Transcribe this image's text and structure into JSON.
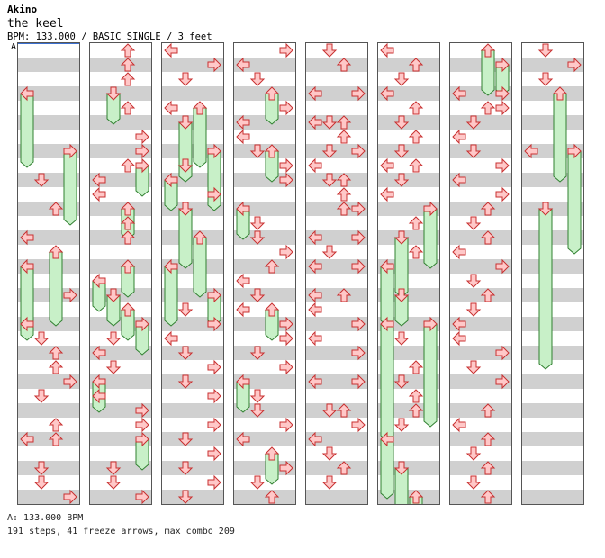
{
  "artist": "Akino",
  "title": "the keel",
  "info": "BPM: 133.000 / BASIC SINGLE / 3 feet",
  "marker": "A",
  "footer": {
    "bpm_line": "A: 133.000 BPM",
    "stats_line": "191 steps, 41 freeze arrows, max combo 209"
  },
  "colors": {
    "stripe": "#d0d0d0",
    "arrow_fill": "#ffc8c8",
    "arrow_stroke": "#c83030",
    "freeze_fill": "#c8f0c8",
    "freeze_stroke": "#308030"
  },
  "columns_count": 8,
  "notes": [
    [
      [
        0,
        3.5,
        "freeze",
        2.5
      ],
      [
        3,
        7.5,
        "freeze",
        2.5
      ],
      [
        2,
        11.5,
        "tap"
      ],
      [
        1,
        9.5,
        "tap"
      ],
      [
        2,
        14.5,
        "freeze",
        2.5
      ],
      [
        0,
        13.5,
        "tap"
      ],
      [
        0,
        15.5,
        "freeze",
        2.5
      ],
      [
        3,
        17.5,
        "tap"
      ],
      [
        0,
        19.5,
        "tap"
      ],
      [
        1,
        20.5,
        "tap"
      ],
      [
        2,
        21.5,
        "tap"
      ],
      [
        2,
        22.5,
        "tap"
      ],
      [
        3,
        23.5,
        "tap"
      ],
      [
        1,
        24.5,
        "tap"
      ],
      [
        2,
        26.5,
        "tap"
      ],
      [
        2,
        27.5,
        "tap"
      ],
      [
        0,
        27.5,
        "tap"
      ],
      [
        1,
        29.5,
        "tap"
      ],
      [
        1,
        30.5,
        "tap"
      ],
      [
        3,
        31.5,
        "tap"
      ]
    ],
    [
      [
        2,
        0.5,
        "tap"
      ],
      [
        2,
        1.5,
        "tap"
      ],
      [
        2,
        2.5,
        "tap"
      ],
      [
        1,
        3.5,
        "freeze",
        1
      ],
      [
        2,
        4.5,
        "tap"
      ],
      [
        3,
        6.5,
        "tap"
      ],
      [
        3,
        7.5,
        "tap"
      ],
      [
        3,
        8.5,
        "freeze",
        1
      ],
      [
        2,
        8.5,
        "tap"
      ],
      [
        0,
        9.5,
        "tap"
      ],
      [
        0,
        10.5,
        "tap"
      ],
      [
        2,
        11.5,
        "freeze",
        1
      ],
      [
        2,
        12.5,
        "tap"
      ],
      [
        2,
        13.5,
        "tap"
      ],
      [
        2,
        15.5,
        "freeze",
        1
      ],
      [
        0,
        16.5,
        "freeze",
        1
      ],
      [
        1,
        17.5,
        "freeze",
        1
      ],
      [
        2,
        18.5,
        "freeze",
        1
      ],
      [
        3,
        19.5,
        "freeze",
        1
      ],
      [
        1,
        20.5,
        "tap"
      ],
      [
        0,
        21.5,
        "tap"
      ],
      [
        1,
        22.5,
        "tap"
      ],
      [
        0,
        24.5,
        "tap"
      ],
      [
        0,
        23.5,
        "freeze",
        1
      ],
      [
        3,
        25.5,
        "tap"
      ],
      [
        3,
        26.5,
        "tap"
      ],
      [
        3,
        27.5,
        "freeze",
        1
      ],
      [
        1,
        29.5,
        "tap"
      ],
      [
        1,
        30.5,
        "tap"
      ],
      [
        3,
        31.5,
        "tap"
      ]
    ],
    [
      [
        0,
        0.5,
        "tap"
      ],
      [
        3,
        1.5,
        "tap"
      ],
      [
        1,
        2.5,
        "tap"
      ],
      [
        0,
        4.5,
        "tap"
      ],
      [
        2,
        4.5,
        "freeze",
        2
      ],
      [
        1,
        5.5,
        "freeze",
        2
      ],
      [
        3,
        7.5,
        "freeze",
        2
      ],
      [
        1,
        8.5,
        "tap"
      ],
      [
        0,
        9.5,
        "freeze",
        1
      ],
      [
        3,
        10.5,
        "tap"
      ],
      [
        1,
        11.5,
        "freeze",
        2
      ],
      [
        2,
        13.5,
        "freeze",
        2
      ],
      [
        0,
        15.5,
        "freeze",
        2
      ],
      [
        3,
        17.5,
        "freeze",
        1
      ],
      [
        1,
        18.5,
        "tap"
      ],
      [
        3,
        19.5,
        "tap"
      ],
      [
        0,
        20.5,
        "tap"
      ],
      [
        1,
        21.5,
        "tap"
      ],
      [
        3,
        22.5,
        "tap"
      ],
      [
        1,
        23.5,
        "tap"
      ],
      [
        3,
        24.5,
        "tap"
      ],
      [
        3,
        26.5,
        "tap"
      ],
      [
        1,
        27.5,
        "tap"
      ],
      [
        3,
        28.5,
        "tap"
      ],
      [
        1,
        29.5,
        "tap"
      ],
      [
        3,
        30.5,
        "tap"
      ],
      [
        1,
        31.5,
        "tap"
      ]
    ],
    [
      [
        0,
        1.5,
        "tap"
      ],
      [
        3,
        0.5,
        "tap"
      ],
      [
        1,
        2.5,
        "tap"
      ],
      [
        2,
        3.5,
        "freeze",
        1
      ],
      [
        3,
        4.5,
        "tap"
      ],
      [
        0,
        5.5,
        "tap"
      ],
      [
        0,
        6.5,
        "tap"
      ],
      [
        1,
        7.5,
        "tap"
      ],
      [
        2,
        7.5,
        "freeze",
        1
      ],
      [
        3,
        8.5,
        "tap"
      ],
      [
        3,
        9.5,
        "tap"
      ],
      [
        0,
        11.5,
        "freeze",
        1
      ],
      [
        1,
        12.5,
        "tap"
      ],
      [
        1,
        13.5,
        "tap"
      ],
      [
        3,
        14.5,
        "tap"
      ],
      [
        2,
        15.5,
        "tap"
      ],
      [
        0,
        16.5,
        "tap"
      ],
      [
        1,
        17.5,
        "tap"
      ],
      [
        2,
        18.5,
        "freeze",
        1
      ],
      [
        0,
        18.5,
        "tap"
      ],
      [
        3,
        19.5,
        "tap"
      ],
      [
        3,
        20.5,
        "tap"
      ],
      [
        1,
        21.5,
        "tap"
      ],
      [
        3,
        22.5,
        "tap"
      ],
      [
        0,
        23.5,
        "freeze",
        1
      ],
      [
        1,
        24.5,
        "tap"
      ],
      [
        1,
        25.5,
        "tap"
      ],
      [
        3,
        26.5,
        "tap"
      ],
      [
        0,
        27.5,
        "tap"
      ],
      [
        2,
        28.5,
        "freeze",
        1
      ],
      [
        3,
        29.5,
        "tap"
      ],
      [
        1,
        30.5,
        "tap"
      ],
      [
        2,
        31.5,
        "tap"
      ]
    ],
    [
      [
        1,
        0.5,
        "tap"
      ],
      [
        2,
        1.5,
        "tap"
      ],
      [
        0,
        3.5,
        "tap"
      ],
      [
        3,
        3.5,
        "tap"
      ],
      [
        2,
        5.5,
        "tap"
      ],
      [
        0,
        5.5,
        "tap"
      ],
      [
        1,
        5.5,
        "tap"
      ],
      [
        2,
        6.5,
        "tap"
      ],
      [
        1,
        7.5,
        "tap"
      ],
      [
        3,
        7.5,
        "tap"
      ],
      [
        0,
        8.5,
        "tap"
      ],
      [
        1,
        9.5,
        "tap"
      ],
      [
        2,
        9.5,
        "tap"
      ],
      [
        2,
        10.5,
        "tap"
      ],
      [
        2,
        11.5,
        "tap"
      ],
      [
        3,
        11.5,
        "tap"
      ],
      [
        0,
        13.5,
        "tap"
      ],
      [
        3,
        13.5,
        "tap"
      ],
      [
        1,
        14.5,
        "tap"
      ],
      [
        0,
        15.5,
        "tap"
      ],
      [
        3,
        15.5,
        "tap"
      ],
      [
        0,
        17.5,
        "tap"
      ],
      [
        2,
        17.5,
        "tap"
      ],
      [
        0,
        18.5,
        "tap"
      ],
      [
        3,
        19.5,
        "tap"
      ],
      [
        0,
        20.5,
        "tap"
      ],
      [
        3,
        21.5,
        "tap"
      ],
      [
        0,
        23.5,
        "tap"
      ],
      [
        3,
        23.5,
        "tap"
      ],
      [
        1,
        25.5,
        "tap"
      ],
      [
        2,
        25.5,
        "tap"
      ],
      [
        3,
        26.5,
        "tap"
      ],
      [
        0,
        27.5,
        "tap"
      ],
      [
        1,
        28.5,
        "tap"
      ],
      [
        2,
        29.5,
        "tap"
      ],
      [
        1,
        30.5,
        "tap"
      ]
    ],
    [
      [
        0,
        0.5,
        "tap"
      ],
      [
        2,
        1.5,
        "tap"
      ],
      [
        1,
        2.5,
        "tap"
      ],
      [
        0,
        3.5,
        "tap"
      ],
      [
        2,
        4.5,
        "tap"
      ],
      [
        1,
        5.5,
        "tap"
      ],
      [
        2,
        6.5,
        "tap"
      ],
      [
        1,
        7.5,
        "tap"
      ],
      [
        2,
        8.5,
        "tap"
      ],
      [
        0,
        8.5,
        "tap"
      ],
      [
        1,
        9.5,
        "tap"
      ],
      [
        0,
        10.5,
        "tap"
      ],
      [
        3,
        11.5,
        "freeze",
        2
      ],
      [
        2,
        12.5,
        "tap"
      ],
      [
        1,
        13.5,
        "freeze",
        2
      ],
      [
        2,
        14.5,
        "tap"
      ],
      [
        0,
        15.5,
        "freeze",
        2
      ],
      [
        1,
        17.5,
        "freeze",
        1
      ],
      [
        0,
        19.5,
        "freeze",
        4
      ],
      [
        3,
        19.5,
        "freeze",
        3.5
      ],
      [
        1,
        20.5,
        "tap"
      ],
      [
        2,
        22.5,
        "tap"
      ],
      [
        1,
        23.5,
        "tap"
      ],
      [
        2,
        24.5,
        "tap"
      ],
      [
        2,
        25.5,
        "tap"
      ],
      [
        1,
        26.5,
        "tap"
      ],
      [
        0,
        27.5,
        "freeze",
        2
      ],
      [
        1,
        29.5,
        "freeze",
        2
      ],
      [
        2,
        31.5,
        "freeze",
        1
      ]
    ],
    [
      [
        2,
        0.5,
        "freeze",
        1.5
      ],
      [
        3,
        1.5,
        "freeze",
        1
      ],
      [
        0,
        3.5,
        "tap"
      ],
      [
        3,
        3.5,
        "tap"
      ],
      [
        2,
        4.5,
        "tap"
      ],
      [
        3,
        4.5,
        "tap"
      ],
      [
        1,
        5.5,
        "tap"
      ],
      [
        0,
        6.5,
        "tap"
      ],
      [
        1,
        7.5,
        "tap"
      ],
      [
        3,
        8.5,
        "tap"
      ],
      [
        0,
        9.5,
        "tap"
      ],
      [
        3,
        10.5,
        "tap"
      ],
      [
        2,
        11.5,
        "tap"
      ],
      [
        1,
        12.5,
        "tap"
      ],
      [
        2,
        13.5,
        "tap"
      ],
      [
        0,
        14.5,
        "tap"
      ],
      [
        3,
        15.5,
        "tap"
      ],
      [
        1,
        16.5,
        "tap"
      ],
      [
        2,
        17.5,
        "tap"
      ],
      [
        1,
        18.5,
        "tap"
      ],
      [
        0,
        19.5,
        "tap"
      ],
      [
        0,
        20.5,
        "tap"
      ],
      [
        3,
        21.5,
        "tap"
      ],
      [
        1,
        22.5,
        "tap"
      ],
      [
        3,
        23.5,
        "tap"
      ],
      [
        2,
        25.5,
        "tap"
      ],
      [
        0,
        26.5,
        "tap"
      ],
      [
        2,
        27.5,
        "tap"
      ],
      [
        1,
        28.5,
        "tap"
      ],
      [
        2,
        29.5,
        "tap"
      ],
      [
        1,
        30.5,
        "tap"
      ],
      [
        2,
        31.5,
        "tap"
      ]
    ],
    [
      [
        1,
        0.5,
        "tap"
      ],
      [
        3,
        1.5,
        "tap"
      ],
      [
        1,
        2.5,
        "tap"
      ],
      [
        2,
        3.5,
        "freeze",
        3
      ],
      [
        0,
        7.5,
        "tap"
      ],
      [
        3,
        7.5,
        "freeze",
        3.5
      ],
      [
        1,
        11.5,
        "freeze",
        5.5
      ]
    ]
  ]
}
